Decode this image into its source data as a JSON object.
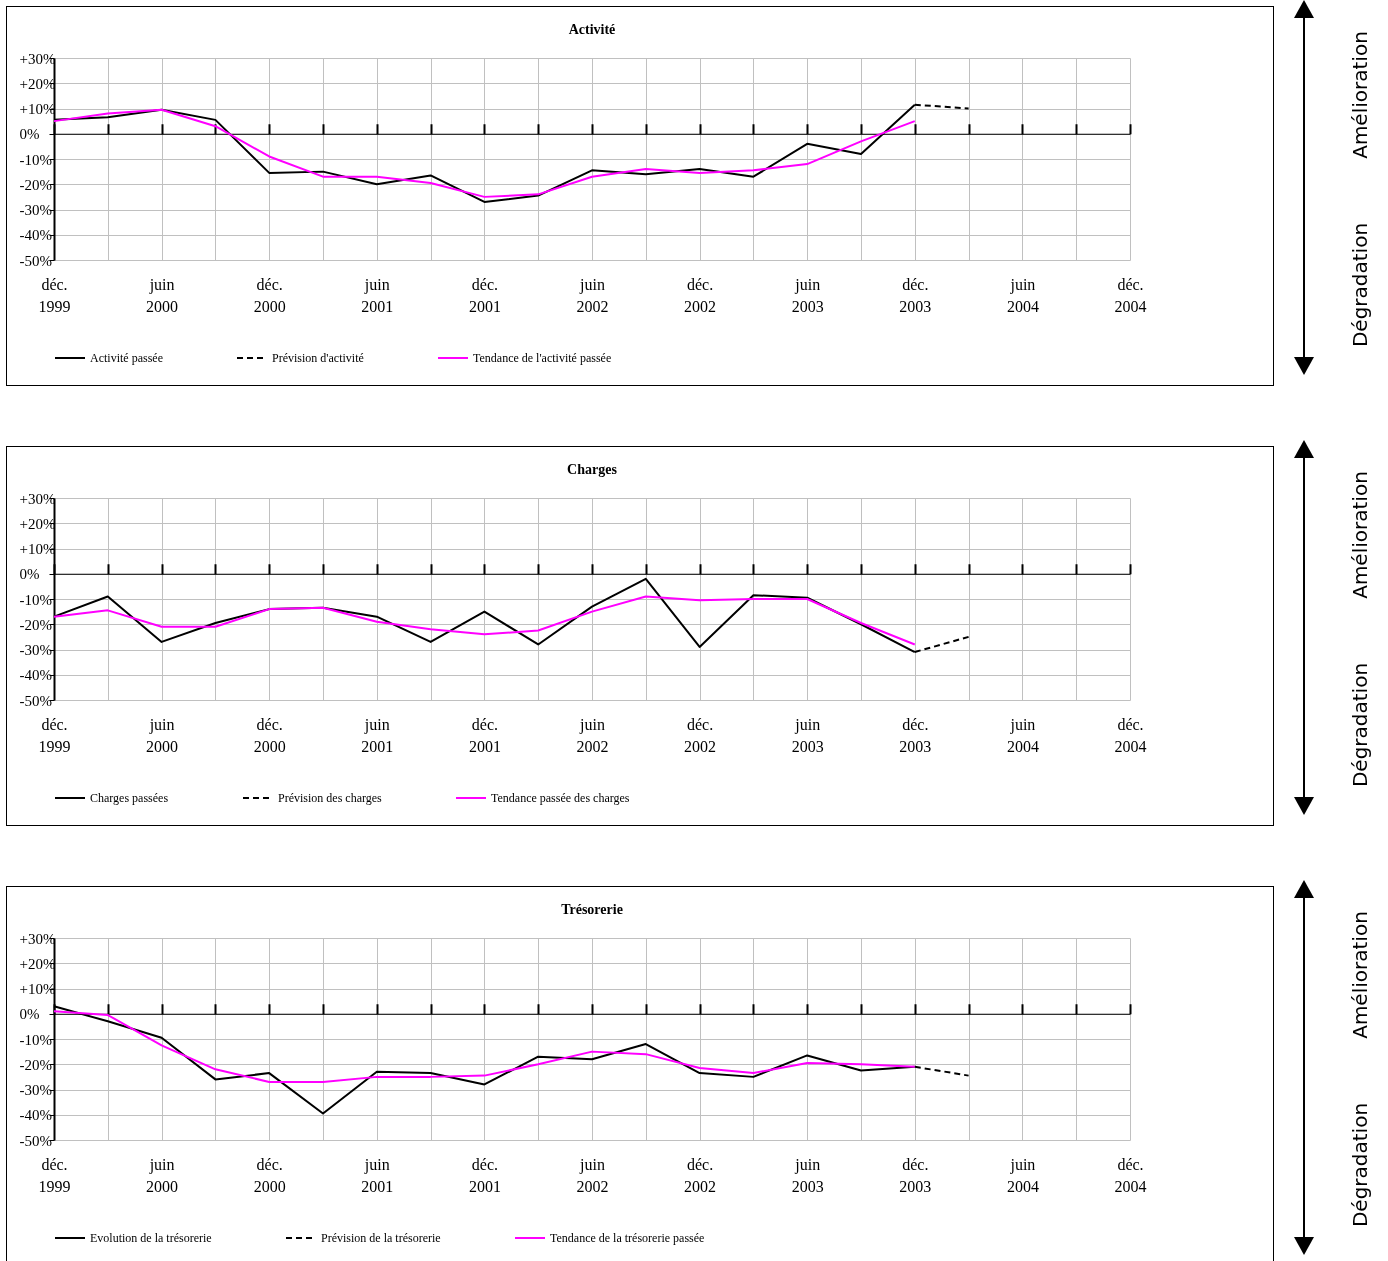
{
  "chart_data": [
    {
      "type": "line",
      "title": "Activité",
      "categories": [
        "déc. 1999",
        null,
        "juin 2000",
        null,
        "déc. 2000",
        null,
        "juin 2001",
        null,
        "déc. 2001",
        null,
        "juin 2002",
        null,
        "déc. 2002",
        null,
        "juin 2003",
        null,
        "déc. 2003",
        null,
        "juin 2004",
        null,
        "déc. 2004"
      ],
      "series": [
        {
          "name": "Activité passée",
          "color": "#000000",
          "line_style": "solid",
          "values": [
            5.5,
            6.5,
            9.5,
            5.5,
            -15.5,
            -15,
            -20,
            -16.5,
            -27,
            -24.5,
            -14.5,
            -16,
            -14,
            -17,
            -4,
            -8,
            11.5,
            null,
            null,
            null,
            null
          ]
        },
        {
          "name": "Prévision d'activité",
          "color": "#000000",
          "line_style": "dashed",
          "values": [
            null,
            null,
            null,
            null,
            null,
            null,
            null,
            null,
            null,
            null,
            null,
            null,
            null,
            null,
            null,
            null,
            11.5,
            10,
            null,
            null,
            null
          ]
        },
        {
          "name": "Tendance de l'activité passée",
          "color": "#ff00ff",
          "line_style": "solid",
          "values": [
            5,
            8,
            9.5,
            3,
            -9,
            -17,
            -17,
            -19.5,
            -25,
            -24,
            -17,
            -14,
            -15.5,
            -14.5,
            -12,
            -3,
            5,
            null,
            null,
            null,
            null
          ]
        }
      ],
      "ylim": [
        -50,
        30
      ],
      "yticks": [
        {
          "value": 30,
          "label": "+30%"
        },
        {
          "value": 20,
          "label": "+20%"
        },
        {
          "value": 10,
          "label": "+10%"
        },
        {
          "value": 0,
          "label": "0%"
        },
        {
          "value": -10,
          "label": "-10%"
        },
        {
          "value": -20,
          "label": "-20%"
        },
        {
          "value": -30,
          "label": "-30%"
        },
        {
          "value": -40,
          "label": "-40%"
        },
        {
          "value": -50,
          "label": "-50%"
        }
      ],
      "grid": true,
      "legend": "bottom",
      "annotations": [
        "Amélioration",
        "Dégradation"
      ]
    },
    {
      "type": "line",
      "title": "Charges",
      "categories": [
        "déc. 1999",
        null,
        "juin 2000",
        null,
        "déc. 2000",
        null,
        "juin 2001",
        null,
        "déc. 2001",
        null,
        "juin 2002",
        null,
        "déc. 2002",
        null,
        "juin 2003",
        null,
        "déc. 2003",
        null,
        "juin 2004",
        null,
        "déc. 2004"
      ],
      "series": [
        {
          "name": "Charges passées",
          "color": "#000000",
          "line_style": "solid",
          "values": [
            -17,
            -9,
            -27,
            -19.5,
            -14,
            -13.5,
            -17,
            -27,
            -15,
            -28,
            -13,
            -2,
            -29,
            -8.5,
            -9.5,
            -20,
            -31,
            null,
            null,
            null,
            null
          ]
        },
        {
          "name": "Prévision des charges",
          "color": "#000000",
          "line_style": "dashed",
          "values": [
            null,
            null,
            null,
            null,
            null,
            null,
            null,
            null,
            null,
            null,
            null,
            null,
            null,
            null,
            null,
            null,
            -31,
            -25,
            null,
            null,
            null
          ]
        },
        {
          "name": "Tendance passée des charges",
          "color": "#ff00ff",
          "line_style": "solid",
          "values": [
            -17,
            -14.5,
            -21,
            -21,
            -14,
            -13.5,
            -19,
            -22,
            -24,
            -22.5,
            -15,
            -9,
            -10.5,
            -10,
            -10,
            -19.5,
            -28,
            null,
            null,
            null,
            null
          ]
        }
      ],
      "ylim": [
        -50,
        30
      ],
      "yticks": [
        {
          "value": 30,
          "label": "+30%"
        },
        {
          "value": 20,
          "label": "+20%"
        },
        {
          "value": 10,
          "label": "+10%"
        },
        {
          "value": 0,
          "label": "0%"
        },
        {
          "value": -10,
          "label": "-10%"
        },
        {
          "value": -20,
          "label": "-20%"
        },
        {
          "value": -30,
          "label": "-30%"
        },
        {
          "value": -40,
          "label": "-40%"
        },
        {
          "value": -50,
          "label": "-50%"
        }
      ],
      "grid": true,
      "legend": "bottom",
      "annotations": [
        "Amélioration",
        "Dégradation"
      ]
    },
    {
      "type": "line",
      "title": "Trésorerie",
      "categories": [
        "déc. 1999",
        null,
        "juin 2000",
        null,
        "déc. 2000",
        null,
        "juin 2001",
        null,
        "déc. 2001",
        null,
        "juin 2002",
        null,
        "déc. 2002",
        null,
        "juin 2003",
        null,
        "déc. 2003",
        null,
        "juin 2004",
        null,
        "déc. 2004"
      ],
      "series": [
        {
          "name": "Evolution de la trésorerie",
          "color": "#000000",
          "line_style": "solid",
          "values": [
            3,
            -3,
            -9.5,
            -26,
            -23.5,
            -39.5,
            -23,
            -23.5,
            -28,
            -17,
            -18,
            -12,
            -23.5,
            -25,
            -16.5,
            -22.5,
            -21,
            null,
            null,
            null,
            null
          ]
        },
        {
          "name": "Prévision de la trésorerie",
          "color": "#000000",
          "line_style": "dashed",
          "values": [
            null,
            null,
            null,
            null,
            null,
            null,
            null,
            null,
            null,
            null,
            null,
            null,
            null,
            null,
            null,
            null,
            -21,
            -24.5,
            null,
            null,
            null
          ]
        },
        {
          "name": "Tendance de la trésorerie passée",
          "color": "#ff00ff",
          "line_style": "solid",
          "values": [
            1,
            -0.5,
            -12.5,
            -22,
            -27,
            -27,
            -25,
            -25,
            -24.5,
            -20,
            -15,
            -16,
            -21.5,
            -23.5,
            -19.5,
            -20,
            -21,
            null,
            null,
            null,
            null
          ]
        }
      ],
      "ylim": [
        -50,
        30
      ],
      "yticks": [
        {
          "value": 30,
          "label": "+30%"
        },
        {
          "value": 20,
          "label": "+20%"
        },
        {
          "value": 10,
          "label": "+10%"
        },
        {
          "value": 0,
          "label": "0%"
        },
        {
          "value": -10,
          "label": "-10%"
        },
        {
          "value": -20,
          "label": "-20%"
        },
        {
          "value": -30,
          "label": "-30%"
        },
        {
          "value": -40,
          "label": "-40%"
        },
        {
          "value": -50,
          "label": "-50%"
        }
      ],
      "grid": true,
      "legend": "bottom",
      "annotations": [
        "Amélioration",
        "Dégradation"
      ]
    }
  ]
}
